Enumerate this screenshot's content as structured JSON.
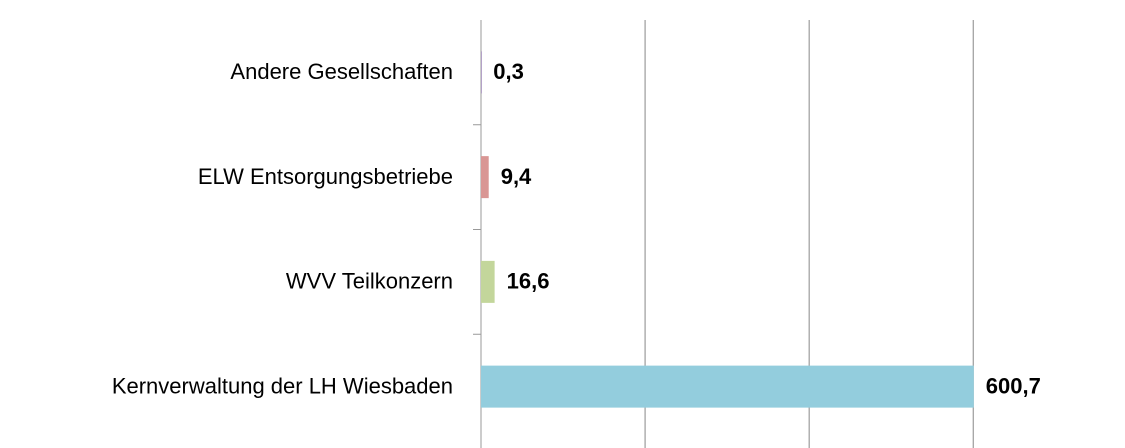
{
  "chart_data": {
    "type": "hbar",
    "categories": [
      "Andere Gesellschaften",
      "ELW Entsorgungsbetriebe",
      "WVV Teilkonzern",
      "Kernverwaltung der LH Wiesbaden"
    ],
    "values": [
      0.3,
      9.4,
      16.6,
      600.7
    ],
    "value_labels": [
      "0,3",
      "9,4",
      "16,6",
      "600,7"
    ],
    "colors": [
      "#b3a2c7",
      "#d99694",
      "#c3d69b",
      "#93cddd"
    ],
    "xlim": [
      0,
      785
    ],
    "xticks": [
      0,
      200,
      400,
      600
    ],
    "grid": true
  }
}
